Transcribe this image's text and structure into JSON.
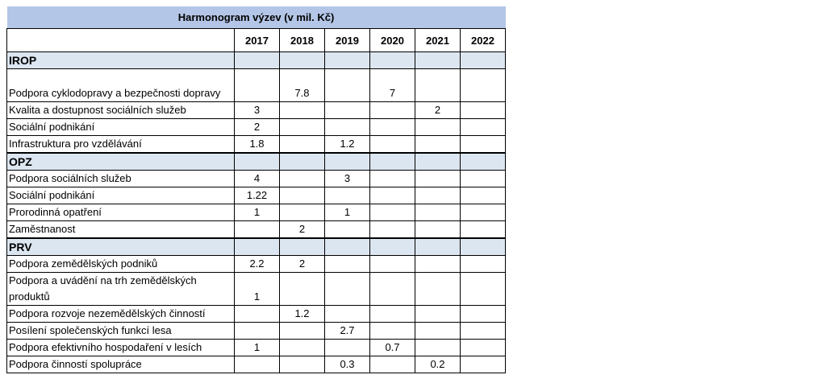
{
  "table": {
    "title": "Harmonogram výzev (v mil. Kč)",
    "years": [
      "2017",
      "2018",
      "2019",
      "2020",
      "2021",
      "2022"
    ],
    "sections": [
      {
        "name": "IROP",
        "rows": [
          {
            "label": "Podpora cyklodopravy a bezpečnosti dopravy",
            "values": [
              "",
              "7.8",
              "",
              "7",
              "",
              ""
            ]
          },
          {
            "label": "Kvalita a dostupnost sociálních služeb",
            "values": [
              "3",
              "",
              "",
              "",
              "2",
              ""
            ]
          },
          {
            "label": "Sociální podnikání",
            "values": [
              "2",
              "",
              "",
              "",
              "",
              ""
            ]
          },
          {
            "label": "Infrastruktura pro vzdělávání",
            "values": [
              "1.8",
              "",
              "1.2",
              "",
              "",
              ""
            ]
          }
        ]
      },
      {
        "name": "OPZ",
        "rows": [
          {
            "label": "Podpora sociálních služeb",
            "values": [
              "4",
              "",
              "3",
              "",
              "",
              ""
            ]
          },
          {
            "label": "Sociální podnikání",
            "values": [
              "1.22",
              "",
              "",
              "",
              "",
              ""
            ]
          },
          {
            "label": "Prorodinná opatření",
            "values": [
              "1",
              "",
              "1",
              "",
              "",
              ""
            ]
          },
          {
            "label": "Zaměstnanost",
            "values": [
              "",
              "2",
              "",
              "",
              "",
              ""
            ]
          }
        ]
      },
      {
        "name": "PRV",
        "rows": [
          {
            "label": "Podpora zemědělských podniků",
            "values": [
              "2.2",
              "2",
              "",
              "",
              "",
              ""
            ]
          },
          {
            "label": "Podpora a uvádění na trh zemědělských produktů",
            "values": [
              "1",
              "",
              "",
              "",
              "",
              ""
            ]
          },
          {
            "label": "Podpora rozvoje nezemědělských činností",
            "values": [
              "",
              "1.2",
              "",
              "",
              "",
              ""
            ]
          },
          {
            "label": "Posílení společenských funkcí lesa",
            "values": [
              "",
              "",
              "2.7",
              "",
              "",
              ""
            ]
          },
          {
            "label": "Podpora efektivního hospodaření v lesích",
            "values": [
              "1",
              "",
              "",
              "0.7",
              "",
              ""
            ]
          },
          {
            "label": "Podpora činností spolupráce",
            "values": [
              "",
              "",
              "0.3",
              "",
              "0.2",
              ""
            ]
          }
        ]
      }
    ]
  }
}
